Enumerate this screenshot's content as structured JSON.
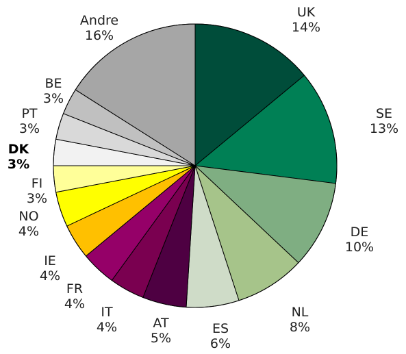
{
  "chart_data": {
    "type": "pie",
    "title": "",
    "start": "top, clockwise",
    "slices": [
      {
        "label": "UK",
        "pct_label": "14%",
        "value": 14,
        "color": "#004D3A"
      },
      {
        "label": "SE",
        "pct_label": "13%",
        "value": 13,
        "color": "#008055"
      },
      {
        "label": "DE",
        "pct_label": "10%",
        "value": 10,
        "color": "#7FAE82"
      },
      {
        "label": "NL",
        "pct_label": "8%",
        "value": 8,
        "color": "#A6C48A"
      },
      {
        "label": "ES",
        "pct_label": "6%",
        "value": 6,
        "color": "#CFDCC8"
      },
      {
        "label": "AT",
        "pct_label": "5%",
        "value": 5,
        "color": "#4E0042"
      },
      {
        "label": "IT",
        "pct_label": "4%",
        "value": 4,
        "color": "#7A0050"
      },
      {
        "label": "FR",
        "pct_label": "4%",
        "value": 4,
        "color": "#950068"
      },
      {
        "label": "IE",
        "pct_label": "4%",
        "value": 4,
        "color": "#FFC000"
      },
      {
        "label": "NO",
        "pct_label": "4%",
        "value": 4,
        "color": "#FFFF00"
      },
      {
        "label": "FI",
        "pct_label": "3%",
        "value": 3,
        "color": "#FFFF99"
      },
      {
        "label": "DK",
        "pct_label": "3%",
        "value": 3,
        "color": "#F2F2F2",
        "emphasized": true
      },
      {
        "label": "PT",
        "pct_label": "3%",
        "value": 3,
        "color": "#D9D9D9"
      },
      {
        "label": "BE",
        "pct_label": "3%",
        "value": 3,
        "color": "#C0C0C0"
      },
      {
        "label": "Andre",
        "pct_label": "16%",
        "value": 16,
        "color": "#A6A6A6"
      }
    ]
  }
}
